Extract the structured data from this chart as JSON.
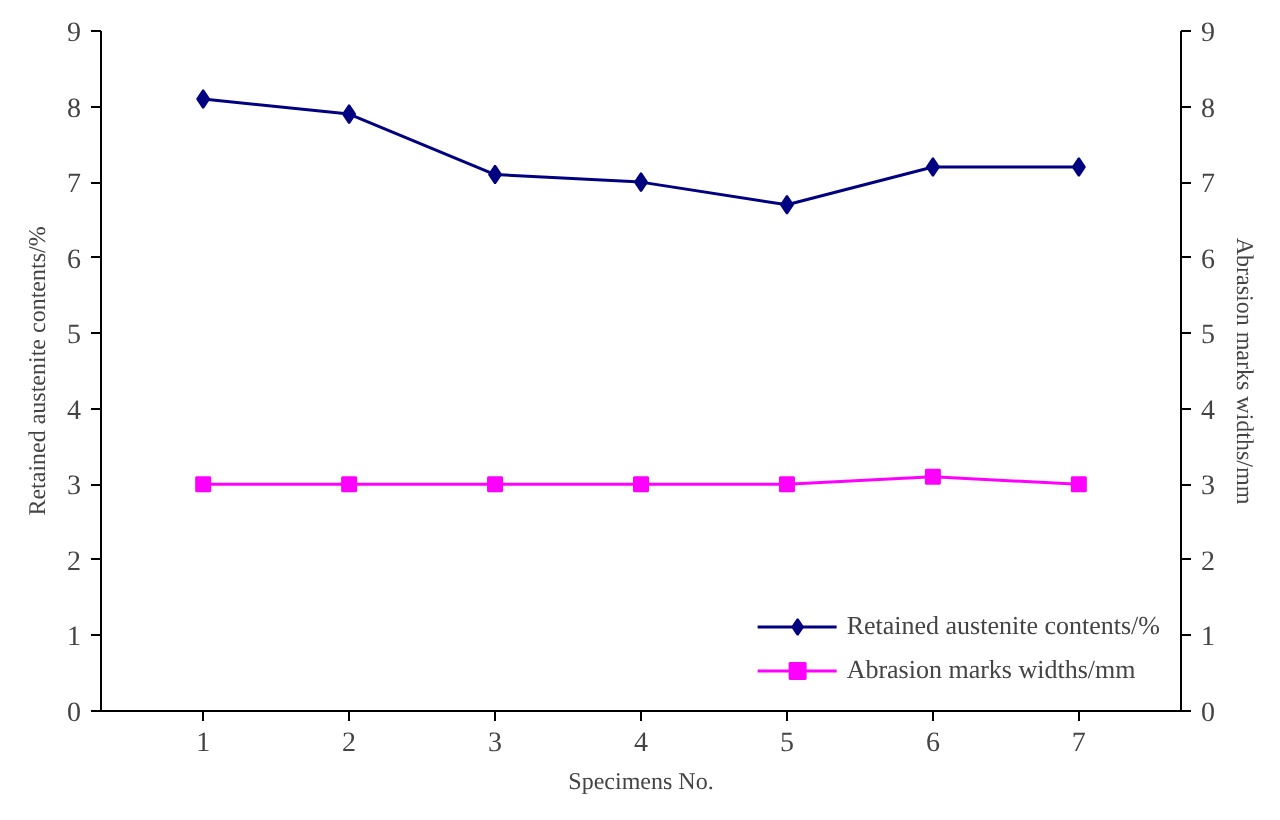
{
  "chart_data": {
    "type": "line",
    "xlabel": "Specimens No.",
    "ylabel": "Retained austenite contents/%",
    "y2label": "Abrasion marks widths/mm",
    "categories": [
      "1",
      "2",
      "3",
      "4",
      "5",
      "6",
      "7"
    ],
    "series": [
      {
        "name": "Retained austenite contents/%",
        "color": "#000080",
        "values": [
          8.1,
          7.9,
          7.1,
          7.0,
          6.7,
          7.2,
          7.2
        ],
        "marker": "diamond"
      },
      {
        "name": "Abrasion marks widths/mm",
        "color": "#ff00ff",
        "values": [
          3.0,
          3.0,
          3.0,
          3.0,
          3.0,
          3.1,
          3.0
        ],
        "marker": "square"
      }
    ],
    "ylim": [
      0,
      9
    ],
    "yticks": [
      0,
      1,
      2,
      3,
      4,
      5,
      6,
      7,
      8,
      9
    ],
    "y2lim": [
      0,
      9
    ],
    "y2ticks": [
      0,
      1,
      2,
      3,
      4,
      5,
      6,
      7,
      8,
      9
    ],
    "grid": false,
    "legend": "bottom right",
    "line_style": "solid"
  }
}
